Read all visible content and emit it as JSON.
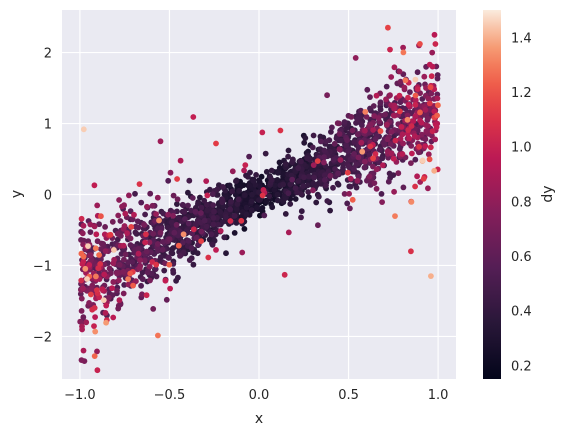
{
  "chart_data": {
    "type": "scatter",
    "xlabel": "x",
    "ylabel": "y",
    "colorbar_label": "dy",
    "xlim": [
      -1.1,
      1.1
    ],
    "ylim": [
      -2.6,
      2.6
    ],
    "x_ticks": [
      -1.0,
      -0.5,
      0.0,
      0.5,
      1.0
    ],
    "x_tick_labels": [
      "−1.0",
      "−0.5",
      "0.0",
      "0.5",
      "1.0"
    ],
    "y_ticks": [
      -2,
      -1,
      0,
      1,
      2
    ],
    "y_tick_labels": [
      "−2",
      "−1",
      "0",
      "1",
      "2"
    ],
    "colorbar_range": [
      0.15,
      1.5
    ],
    "colorbar_ticks": [
      0.2,
      0.4,
      0.6,
      0.8,
      1.0,
      1.2,
      1.4
    ],
    "colorbar_tick_labels": [
      "0.2",
      "0.4",
      "0.6",
      "0.8",
      "1.0",
      "1.2",
      "1.4"
    ],
    "colormap": "rocket",
    "grid": true,
    "background": "#eaeaf2",
    "trend": {
      "slope": 1.2,
      "intercept": 0.0
    },
    "n_points": 2000,
    "sample_points": [
      {
        "x": -0.98,
        "y": -2.2,
        "dy": 0.9
      },
      {
        "x": -0.97,
        "y": -1.2,
        "dy": 0.7
      },
      {
        "x": -0.9,
        "y": -0.3,
        "dy": 0.9
      },
      {
        "x": -0.55,
        "y": 0.75,
        "dy": 0.85
      },
      {
        "x": -0.5,
        "y": -0.6,
        "dy": 0.4
      },
      {
        "x": -0.2,
        "y": -0.3,
        "dy": 0.3
      },
      {
        "x": 0.0,
        "y": 0.2,
        "dy": 0.3
      },
      {
        "x": 0.2,
        "y": 0.1,
        "dy": 0.3
      },
      {
        "x": 0.38,
        "y": 1.4,
        "dy": 0.7
      },
      {
        "x": 0.5,
        "y": 0.6,
        "dy": 0.4
      },
      {
        "x": 0.72,
        "y": 2.35,
        "dy": 1.15
      },
      {
        "x": 0.85,
        "y": -0.1,
        "dy": 1.0
      },
      {
        "x": 0.96,
        "y": -1.15,
        "dy": 1.4
      },
      {
        "x": 0.98,
        "y": 2.25,
        "dy": 0.95
      }
    ]
  }
}
